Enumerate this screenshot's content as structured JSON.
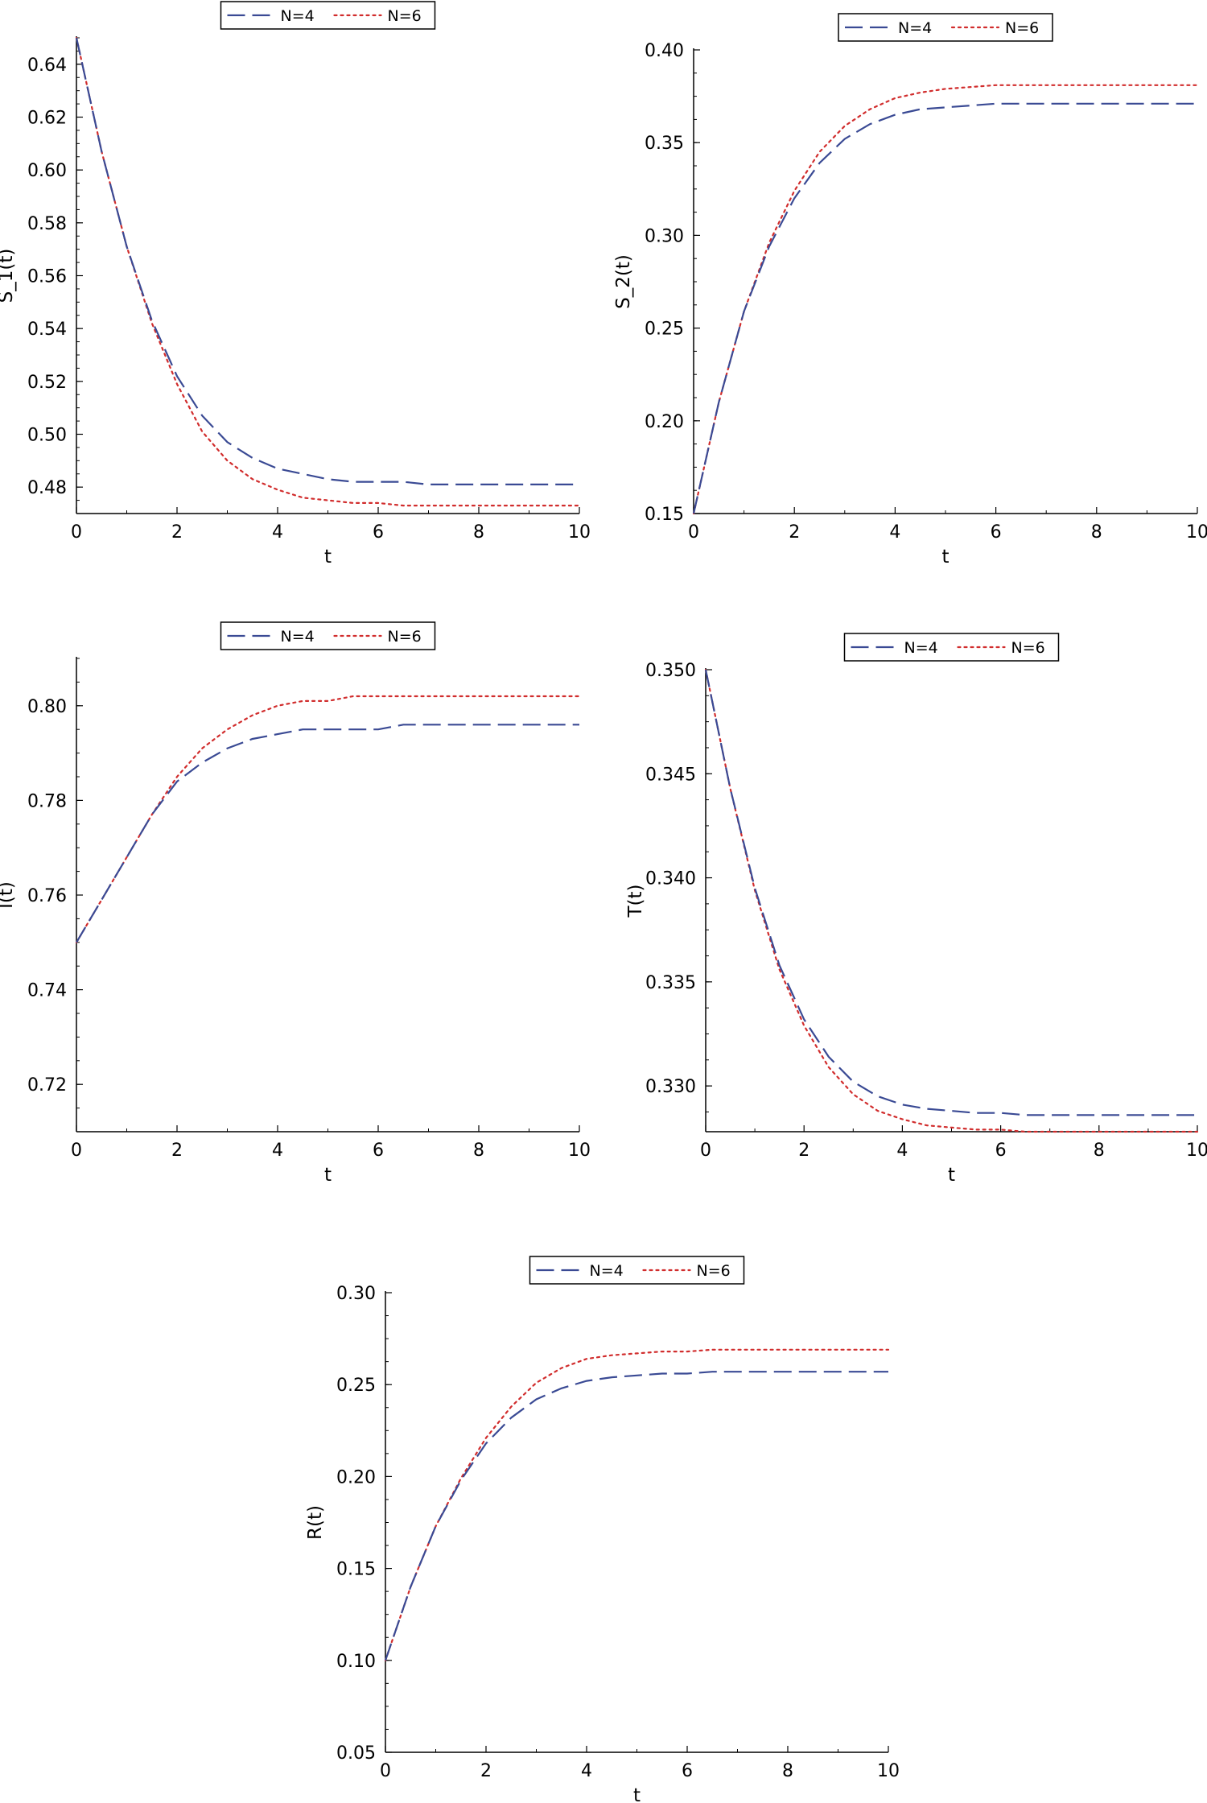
{
  "colors": {
    "N4": "#3a4a94",
    "N6": "#d12d2d"
  },
  "chart_data": [
    {
      "type": "line",
      "xlabel": "t",
      "ylabel": "S_1(t)",
      "xlim": [
        0,
        10
      ],
      "ylim": [
        0.47,
        0.65
      ],
      "xticks": [
        0,
        2,
        4,
        6,
        8,
        10
      ],
      "yticks": [
        0.48,
        0.5,
        0.52,
        0.54,
        0.56,
        0.58,
        0.6,
        0.62,
        0.64
      ],
      "ytick_labels": [
        "0.48",
        "0.50",
        "0.52",
        "0.54",
        "0.56",
        "0.58",
        "0.60",
        "0.62",
        "0.64"
      ],
      "legend": "top-center",
      "x": [
        0,
        0.5,
        1,
        1.5,
        2,
        2.5,
        3,
        3.5,
        4,
        4.5,
        5,
        5.5,
        6,
        6.5,
        7,
        8,
        9,
        10
      ],
      "series": [
        {
          "name": "N=4",
          "style": "dash",
          "values": [
            0.65,
            0.607,
            0.571,
            0.543,
            0.522,
            0.507,
            0.497,
            0.491,
            0.487,
            0.485,
            0.483,
            0.482,
            0.482,
            0.482,
            0.481,
            0.481,
            0.481,
            0.481
          ]
        },
        {
          "name": "N=6",
          "style": "dot",
          "values": [
            0.65,
            0.607,
            0.571,
            0.542,
            0.519,
            0.501,
            0.49,
            0.483,
            0.479,
            0.476,
            0.475,
            0.474,
            0.474,
            0.473,
            0.473,
            0.473,
            0.473,
            0.473
          ]
        }
      ]
    },
    {
      "type": "line",
      "xlabel": "t",
      "ylabel": "S_2(t)",
      "xlim": [
        0,
        10
      ],
      "ylim": [
        0.15,
        0.4
      ],
      "xticks": [
        0,
        2,
        4,
        6,
        8,
        10
      ],
      "yticks": [
        0.15,
        0.2,
        0.25,
        0.3,
        0.35,
        0.4
      ],
      "ytick_labels": [
        "0.15",
        "0.20",
        "0.25",
        "0.30",
        "0.35",
        "0.40"
      ],
      "legend": "top-center",
      "x": [
        0,
        0.5,
        1,
        1.5,
        2,
        2.5,
        3,
        3.5,
        4,
        4.5,
        5,
        5.5,
        6,
        6.5,
        7,
        8,
        9,
        10
      ],
      "series": [
        {
          "name": "N=4",
          "style": "dash",
          "values": [
            0.15,
            0.21,
            0.259,
            0.294,
            0.32,
            0.339,
            0.352,
            0.36,
            0.365,
            0.368,
            0.369,
            0.37,
            0.371,
            0.371,
            0.371,
            0.371,
            0.371,
            0.371
          ]
        },
        {
          "name": "N=6",
          "style": "dot",
          "values": [
            0.15,
            0.21,
            0.259,
            0.296,
            0.324,
            0.345,
            0.359,
            0.368,
            0.374,
            0.377,
            0.379,
            0.38,
            0.381,
            0.381,
            0.381,
            0.381,
            0.381,
            0.381
          ]
        }
      ]
    },
    {
      "type": "line",
      "xlabel": "t",
      "ylabel": "I(t)",
      "xlim": [
        0,
        10
      ],
      "ylim": [
        0.71,
        0.81
      ],
      "xticks": [
        0,
        2,
        4,
        6,
        8,
        10
      ],
      "yticks": [
        0.72,
        0.74,
        0.76,
        0.78,
        0.8
      ],
      "ytick_labels": [
        "0.72",
        "0.74",
        "0.76",
        "0.78",
        "0.80"
      ],
      "legend": "top-center",
      "x": [
        0,
        0.5,
        1,
        1.5,
        2,
        2.5,
        3,
        3.5,
        4,
        4.5,
        5,
        5.5,
        6,
        6.5,
        7,
        8,
        9,
        10
      ],
      "series": [
        {
          "name": "N=4",
          "style": "dash",
          "values": [
            0.75,
            0.759,
            0.768,
            0.777,
            0.784,
            0.788,
            0.791,
            0.793,
            0.794,
            0.795,
            0.795,
            0.795,
            0.795,
            0.796,
            0.796,
            0.796,
            0.796,
            0.796
          ]
        },
        {
          "name": "N=6",
          "style": "dot",
          "values": [
            0.75,
            0.759,
            0.768,
            0.777,
            0.785,
            0.791,
            0.795,
            0.798,
            0.8,
            0.801,
            0.801,
            0.802,
            0.802,
            0.802,
            0.802,
            0.802,
            0.802,
            0.802
          ]
        }
      ]
    },
    {
      "type": "line",
      "xlabel": "t",
      "ylabel": "T(t)",
      "xlim": [
        0,
        10
      ],
      "ylim": [
        0.3278,
        0.35
      ],
      "xticks": [
        0,
        2,
        4,
        6,
        8,
        10
      ],
      "yticks": [
        0.33,
        0.335,
        0.34,
        0.345,
        0.35
      ],
      "ytick_labels": [
        "0.330",
        "0.335",
        "0.340",
        "0.345",
        "0.350"
      ],
      "legend": "top-center",
      "x": [
        0,
        0.5,
        1,
        1.5,
        2,
        2.5,
        3,
        3.5,
        4,
        4.5,
        5,
        5.5,
        6,
        6.5,
        7,
        8,
        9,
        10
      ],
      "series": [
        {
          "name": "N=4",
          "style": "dash",
          "values": [
            0.35,
            0.3443,
            0.3395,
            0.3358,
            0.3332,
            0.3314,
            0.3302,
            0.3295,
            0.3291,
            0.3289,
            0.3288,
            0.3287,
            0.3287,
            0.3286,
            0.3286,
            0.3286,
            0.3286,
            0.3286
          ]
        },
        {
          "name": "N=6",
          "style": "dot",
          "values": [
            0.35,
            0.3443,
            0.3394,
            0.3356,
            0.3329,
            0.3309,
            0.3296,
            0.3288,
            0.3284,
            0.3281,
            0.328,
            0.3279,
            0.3279,
            0.3278,
            0.3278,
            0.3278,
            0.3278,
            0.3278
          ]
        }
      ]
    },
    {
      "type": "line",
      "xlabel": "t",
      "ylabel": "R(t)",
      "xlim": [
        0,
        10
      ],
      "ylim": [
        0.05,
        0.3
      ],
      "xticks": [
        0,
        2,
        4,
        6,
        8,
        10
      ],
      "yticks": [
        0.05,
        0.1,
        0.15,
        0.2,
        0.25,
        0.3
      ],
      "ytick_labels": [
        "0.05",
        "0.10",
        "0.15",
        "0.20",
        "0.25",
        "0.30"
      ],
      "legend": "top-center",
      "x": [
        0,
        0.5,
        1,
        1.5,
        2,
        2.5,
        3,
        3.5,
        4,
        4.5,
        5,
        5.5,
        6,
        6.5,
        7,
        8,
        9,
        10
      ],
      "series": [
        {
          "name": "N=4",
          "style": "dash",
          "values": [
            0.1,
            0.14,
            0.173,
            0.198,
            0.218,
            0.232,
            0.242,
            0.248,
            0.252,
            0.254,
            0.255,
            0.256,
            0.256,
            0.257,
            0.257,
            0.257,
            0.257,
            0.257
          ]
        },
        {
          "name": "N=6",
          "style": "dot",
          "values": [
            0.1,
            0.14,
            0.173,
            0.199,
            0.221,
            0.238,
            0.251,
            0.259,
            0.264,
            0.266,
            0.267,
            0.268,
            0.268,
            0.269,
            0.269,
            0.269,
            0.269,
            0.269
          ]
        }
      ]
    }
  ]
}
